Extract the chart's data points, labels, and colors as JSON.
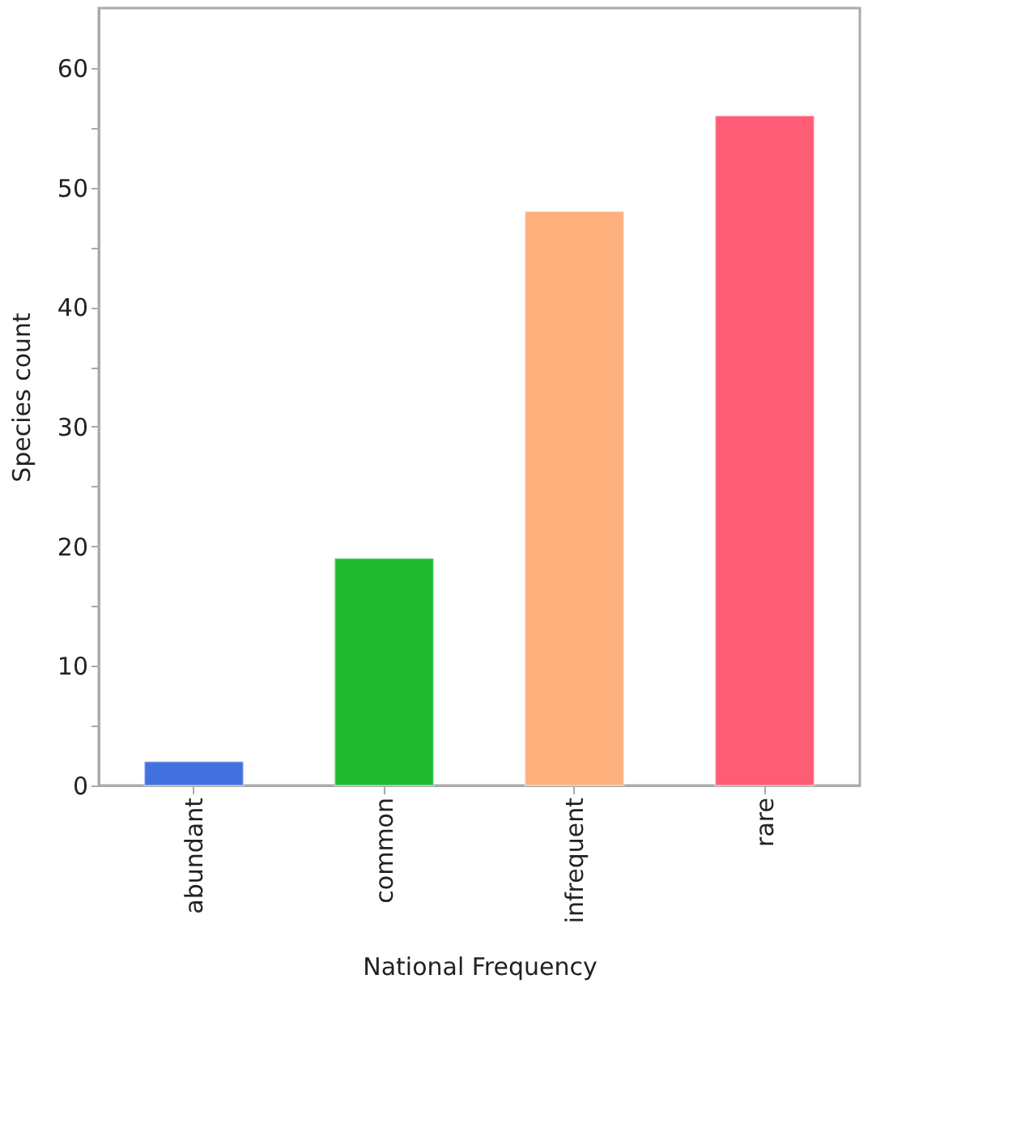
{
  "chart_data": {
    "type": "bar",
    "xlabel": "National Frequency",
    "ylabel": "Species count",
    "categories": [
      "abundant",
      "common",
      "infrequent",
      "rare"
    ],
    "values": [
      2,
      19,
      48,
      56
    ],
    "colors": [
      "#4371e0",
      "#22bb2f",
      "#feb07d",
      "#fe5d75"
    ],
    "ylim": [
      0,
      65
    ],
    "yticks": [
      0,
      {
        "value": 5,
        "label": null
      },
      10,
      {
        "value": 15,
        "label": null
      },
      20,
      {
        "value": 25,
        "label": null
      },
      30,
      {
        "value": 35,
        "label": null
      },
      40,
      {
        "value": 45,
        "label": null
      },
      50,
      {
        "value": 55,
        "label": null
      },
      60
    ],
    "grid": false,
    "legend": false
  }
}
